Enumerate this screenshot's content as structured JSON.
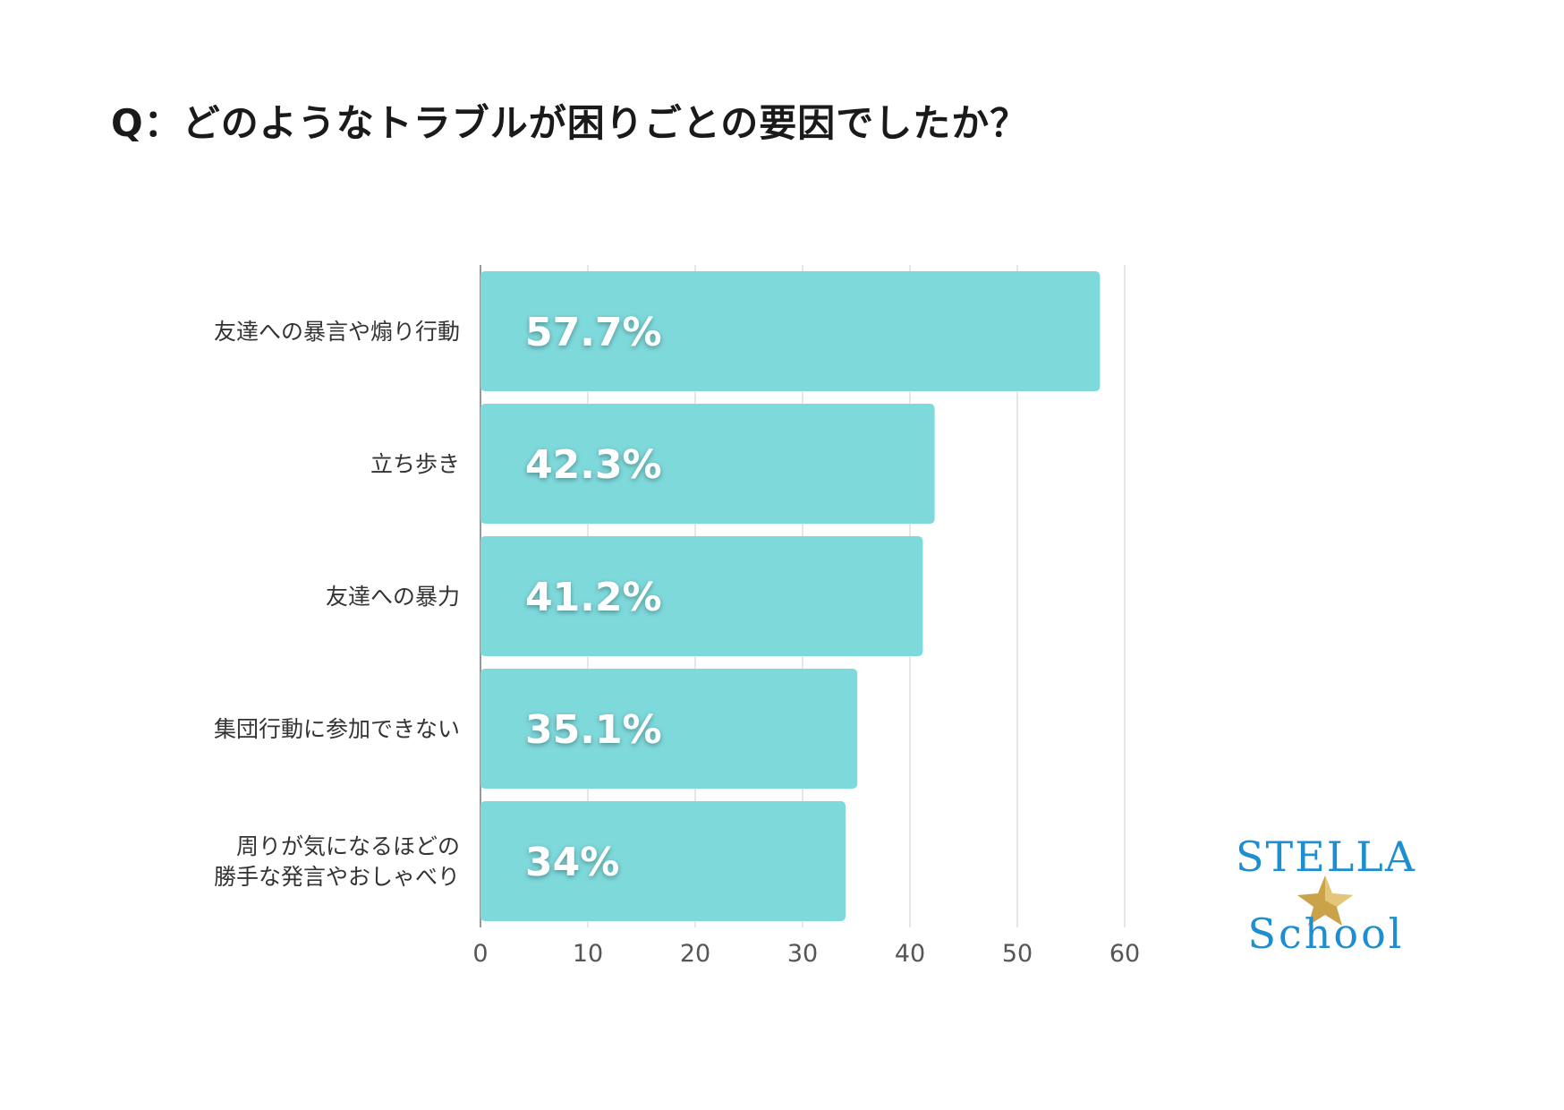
{
  "title": "Q：どのようなトラブルが困りごとの要因でしたか？",
  "logo": {
    "line1": "STELLA",
    "line2": "School"
  },
  "colors": {
    "bar": "#7ed9db",
    "grid": "#dddddd",
    "axis": "#999999",
    "star": "#c9a24a"
  },
  "chart_data": {
    "type": "bar",
    "orientation": "horizontal",
    "categories": [
      [
        "友達への暴言や煽り行動"
      ],
      [
        "立ち歩き"
      ],
      [
        "友達への暴力"
      ],
      [
        "集団行動に参加できない"
      ],
      [
        "周りが気になるほどの",
        "勝手な発言やおしゃべり"
      ]
    ],
    "values": [
      57.7,
      42.3,
      41.2,
      35.1,
      34
    ],
    "value_labels": [
      "57.7%",
      "42.3%",
      "41.2%",
      "35.1%",
      "34%"
    ],
    "xlim": [
      0,
      60
    ],
    "xticks": [
      "0",
      "10",
      "20",
      "30",
      "40",
      "50",
      "60"
    ],
    "grid": "vertical"
  }
}
